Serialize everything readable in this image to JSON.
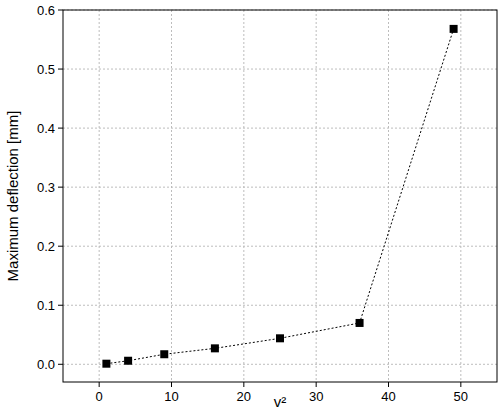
{
  "chart_data": {
    "type": "line",
    "xlabel": "v²",
    "ylabel": "Maximum deflection [mm]",
    "x": [
      1,
      4,
      9,
      16,
      25,
      36,
      49
    ],
    "values": [
      0.001,
      0.006,
      0.017,
      0.027,
      0.044,
      0.07,
      0.568
    ],
    "color": "#000000",
    "marker": "square",
    "line_style": "dotted",
    "xlim": [
      -5,
      55
    ],
    "xticks": [
      0,
      10,
      20,
      30,
      40,
      50
    ],
    "ylim": [
      -0.03,
      0.6
    ],
    "yticks": [
      {
        "value": 0,
        "label": "0.0"
      },
      {
        "value": 0.1,
        "label": "0.1"
      },
      {
        "value": 0.2,
        "label": "0.2"
      },
      {
        "value": 0.3,
        "label": "0.3"
      },
      {
        "value": 0.4,
        "label": "0.4"
      },
      {
        "value": 0.5,
        "label": "0.5"
      },
      {
        "value": 0.6,
        "label": "0.6"
      }
    ],
    "grid": true
  }
}
